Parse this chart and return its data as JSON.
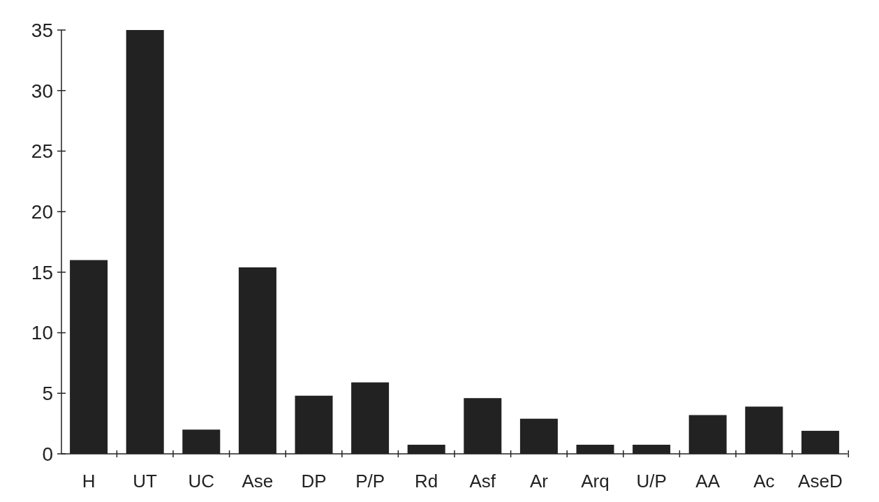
{
  "chart_data": {
    "type": "bar",
    "categories": [
      "H",
      "UT",
      "UC",
      "Ase",
      "DP",
      "P/P",
      "Rd",
      "Asf",
      "Ar",
      "Arq",
      "U/P",
      "AA",
      "Ac",
      "AseD"
    ],
    "values": [
      16,
      35,
      2,
      15.4,
      4.8,
      5.9,
      0.75,
      4.6,
      2.9,
      0.75,
      0.75,
      3.2,
      3.9,
      1.9
    ],
    "color": "#222222",
    "ylim": [
      0,
      35
    ],
    "yticks": [
      0,
      5,
      10,
      15,
      20,
      25,
      30,
      35
    ],
    "grid": false
  }
}
